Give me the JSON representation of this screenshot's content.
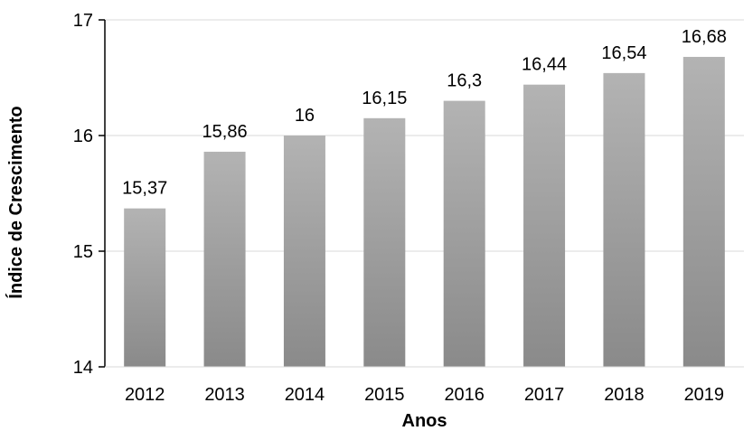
{
  "chart_data": {
    "type": "bar",
    "title": "",
    "xlabel": "Anos",
    "ylabel": "Índice de Crescimento",
    "categories": [
      "2012",
      "2013",
      "2014",
      "2015",
      "2016",
      "2017",
      "2018",
      "2019"
    ],
    "values": [
      15.37,
      15.86,
      16,
      16.15,
      16.3,
      16.44,
      16.54,
      16.68
    ],
    "data_labels": [
      "15,37",
      "15,86",
      "16",
      "16,15",
      "16,3",
      "16,44",
      "16,54",
      "16,68"
    ],
    "ylim": [
      14,
      17
    ],
    "yticks": [
      14,
      15,
      16,
      17
    ],
    "ytick_labels": [
      "14",
      "15",
      "16",
      "17"
    ],
    "grid": true,
    "legend": "none",
    "colors": {
      "bar_top": "#b3b3b3",
      "bar_bottom": "#8a8a8a",
      "grid": "#d9d9d9",
      "axis": "#000000"
    }
  }
}
